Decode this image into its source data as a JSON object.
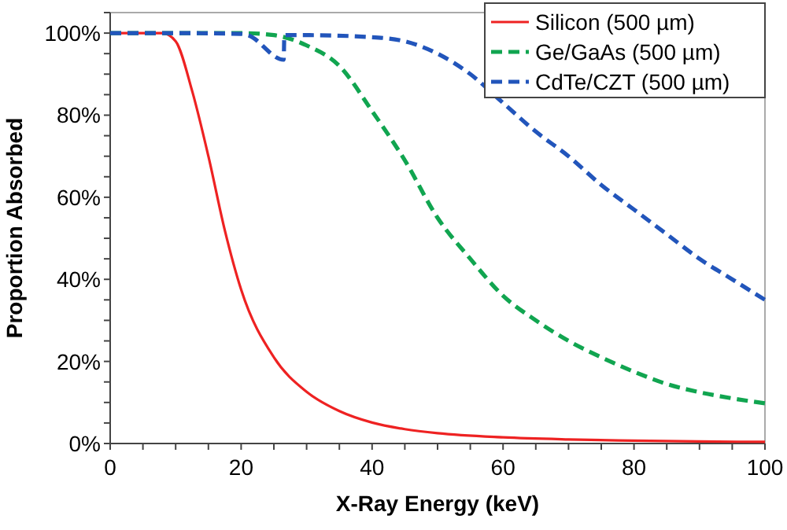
{
  "chart_data": {
    "type": "line",
    "xlabel": "X-Ray Energy (keV)",
    "ylabel": "Proportion Absorbed",
    "xlim": [
      0,
      100
    ],
    "ylim": [
      0,
      105
    ],
    "xticks": [
      0,
      {
        "value": 5,
        "label": null
      },
      20,
      {
        "value": 10,
        "label": null
      },
      {
        "value": 15,
        "label": null
      },
      {
        "value": 25,
        "label": null
      },
      {
        "value": 30,
        "label": null
      },
      {
        "value": 35,
        "label": null
      },
      40,
      {
        "value": 45,
        "label": null
      },
      {
        "value": 50,
        "label": null
      },
      {
        "value": 55,
        "label": null
      },
      60,
      {
        "value": 65,
        "label": null
      },
      {
        "value": 70,
        "label": null
      },
      {
        "value": 75,
        "label": null
      },
      80,
      {
        "value": 85,
        "label": null
      },
      {
        "value": 90,
        "label": null
      },
      {
        "value": 95,
        "label": null
      },
      100
    ],
    "yticks": [
      {
        "value": 0,
        "label": "0%"
      },
      {
        "value": 5,
        "label": null
      },
      {
        "value": 10,
        "label": null
      },
      {
        "value": 15,
        "label": null
      },
      {
        "value": 20,
        "label": "20%"
      },
      {
        "value": 25,
        "label": null
      },
      {
        "value": 30,
        "label": null
      },
      {
        "value": 35,
        "label": null
      },
      {
        "value": 40,
        "label": "40%"
      },
      {
        "value": 45,
        "label": null
      },
      {
        "value": 50,
        "label": null
      },
      {
        "value": 55,
        "label": null
      },
      {
        "value": 60,
        "label": "60%"
      },
      {
        "value": 65,
        "label": null
      },
      {
        "value": 70,
        "label": null
      },
      {
        "value": 75,
        "label": null
      },
      {
        "value": 80,
        "label": "80%"
      },
      {
        "value": 85,
        "label": null
      },
      {
        "value": 90,
        "label": null
      },
      {
        "value": 95,
        "label": null
      },
      {
        "value": 100,
        "label": "100%"
      },
      {
        "value": 105,
        "label": null
      }
    ],
    "grid": false,
    "legend": "top right",
    "series": [
      {
        "name": "Silicon (500 µm)",
        "color": "#ee2222",
        "line_style": "solid",
        "x": [
          0,
          5,
          8,
          10,
          12.5,
          15,
          17.5,
          20,
          25,
          30,
          35,
          40,
          45,
          50,
          60,
          70,
          80,
          90,
          100
        ],
        "values": [
          100,
          100,
          100,
          98,
          86,
          70,
          52,
          37.5,
          21,
          12.6,
          7.9,
          5.1,
          3.5,
          2.5,
          1.5,
          1,
          0.7,
          0.5,
          0.4
        ]
      },
      {
        "name": "Ge/GaAs (500 µm)",
        "color": "#11a550",
        "line_style": "dashed",
        "x": [
          0,
          10,
          20,
          25,
          30,
          35,
          40,
          45,
          50,
          55,
          60,
          65,
          70,
          75,
          80,
          85,
          90,
          95,
          100
        ],
        "values": [
          100,
          100,
          100,
          99.5,
          97,
          92,
          81,
          69,
          55,
          45,
          36,
          30,
          25,
          21,
          17.5,
          14.5,
          12.5,
          11,
          9.8
        ]
      },
      {
        "name": "CdTe/CZT (500 µm)",
        "color": "#2255bb",
        "line_style": "dashed",
        "x": [
          0,
          10,
          20,
          21,
          26.5,
          26.6,
          30,
          40,
          45,
          50,
          55,
          60,
          65,
          70,
          75,
          80,
          85,
          90,
          95,
          100
        ],
        "values": [
          100,
          100,
          99.8,
          99.5,
          93.5,
          99.5,
          99.5,
          99,
          98,
          95,
          90,
          83,
          76,
          70,
          63,
          57,
          51,
          45,
          40,
          35
        ]
      }
    ]
  }
}
